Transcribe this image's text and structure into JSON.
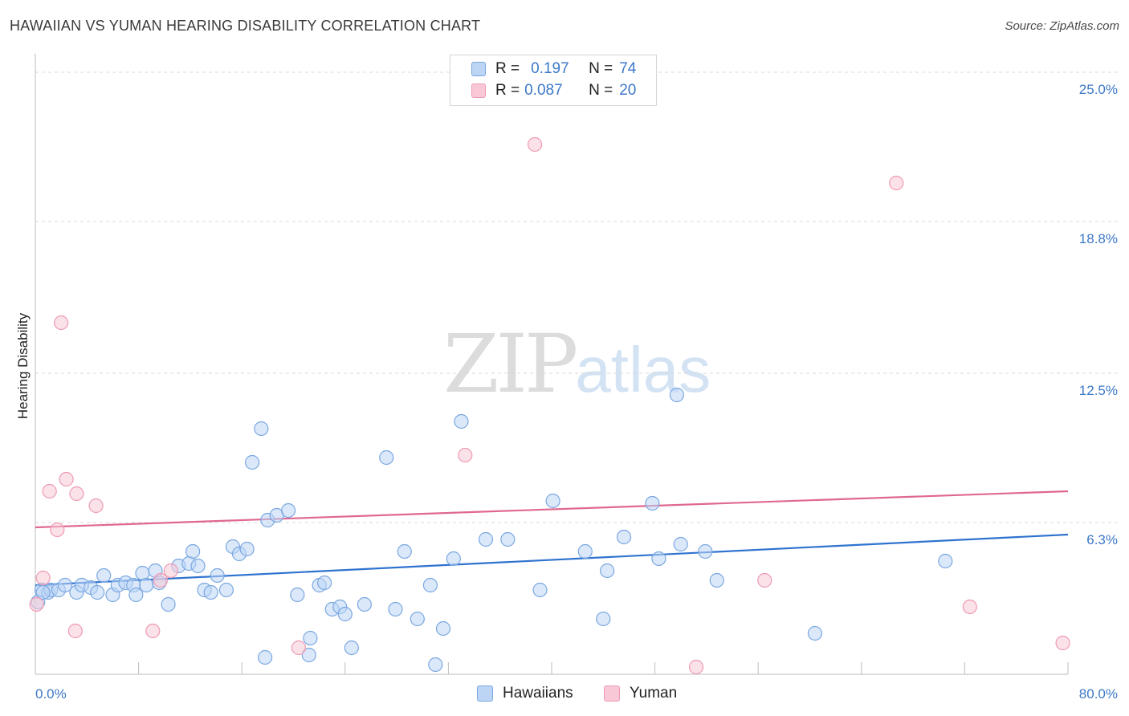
{
  "header": {
    "title": "HAWAIIAN VS YUMAN HEARING DISABILITY CORRELATION CHART",
    "source": "Source: ZipAtlas.com"
  },
  "watermark": {
    "zip": "ZIP",
    "atlas": "atlas"
  },
  "legend": {
    "rows": [
      {
        "r_label": "R =",
        "r_value": "0.197",
        "n_label": "N =",
        "n_value": "74"
      },
      {
        "r_label": "R =",
        "r_value": "0.087",
        "n_label": "N =",
        "n_value": "20"
      }
    ]
  },
  "bottom_legend": {
    "hawaiians": "Hawaiians",
    "yuman": "Yuman"
  },
  "colors": {
    "hawaiians_fill": "#bcd5f5",
    "hawaiians_stroke": "#7aa7e0",
    "hawaiians_line": "#2f73cf",
    "yuman_fill": "#f8c8d6",
    "yuman_stroke": "#ee9ab3",
    "yuman_line": "#e06890",
    "grid": "#d9d9d9",
    "tick_label": "#3d78c8"
  },
  "chart_data": {
    "type": "scatter",
    "title": "HAWAIIAN VS YUMAN HEARING DISABILITY CORRELATION CHART",
    "xlabel": "",
    "ylabel": "Hearing Disability",
    "xlim": [
      0,
      80
    ],
    "ylim": [
      0,
      25.6
    ],
    "x_tick_labels": [
      "0.0%",
      "80.0%"
    ],
    "y_ticks": [
      6.3,
      12.5,
      18.8,
      25.0
    ],
    "y_tick_labels": [
      "6.3%",
      "12.5%",
      "18.8%",
      "25.0%"
    ],
    "grid": true,
    "series": [
      {
        "name": "Hawaiians",
        "r": 0.197,
        "n": 74,
        "trend": {
          "x": [
            0,
            80
          ],
          "y": [
            3.7,
            5.8
          ]
        },
        "points": [
          [
            0.2,
            3.0
          ],
          [
            0.5,
            3.5
          ],
          [
            1.0,
            3.4
          ],
          [
            1.2,
            3.5
          ],
          [
            1.8,
            3.5
          ],
          [
            2.3,
            3.7
          ],
          [
            3.2,
            3.4
          ],
          [
            3.6,
            3.7
          ],
          [
            4.3,
            3.6
          ],
          [
            4.8,
            3.4
          ],
          [
            5.3,
            4.1
          ],
          [
            6.0,
            3.3
          ],
          [
            6.4,
            3.7
          ],
          [
            7.0,
            3.8
          ],
          [
            7.6,
            3.7
          ],
          [
            7.8,
            3.3
          ],
          [
            8.3,
            4.2
          ],
          [
            8.6,
            3.7
          ],
          [
            9.3,
            4.3
          ],
          [
            9.6,
            3.8
          ],
          [
            10.3,
            2.9
          ],
          [
            11.1,
            4.5
          ],
          [
            11.9,
            4.6
          ],
          [
            12.2,
            5.1
          ],
          [
            12.6,
            4.5
          ],
          [
            13.1,
            3.5
          ],
          [
            13.6,
            3.4
          ],
          [
            14.1,
            4.1
          ],
          [
            14.8,
            3.5
          ],
          [
            15.3,
            5.3
          ],
          [
            15.8,
            5.0
          ],
          [
            16.4,
            5.2
          ],
          [
            16.8,
            8.8
          ],
          [
            17.5,
            10.2
          ],
          [
            17.8,
            0.7
          ],
          [
            18.0,
            6.4
          ],
          [
            18.7,
            6.6
          ],
          [
            19.6,
            6.8
          ],
          [
            20.3,
            3.3
          ],
          [
            21.2,
            0.8
          ],
          [
            21.3,
            1.5
          ],
          [
            22.0,
            3.7
          ],
          [
            22.4,
            3.8
          ],
          [
            23.0,
            2.7
          ],
          [
            23.6,
            2.8
          ],
          [
            24.0,
            2.5
          ],
          [
            24.5,
            1.1
          ],
          [
            25.5,
            2.9
          ],
          [
            27.2,
            9.0
          ],
          [
            27.9,
            2.7
          ],
          [
            28.6,
            5.1
          ],
          [
            29.6,
            2.3
          ],
          [
            30.6,
            3.7
          ],
          [
            31.0,
            0.4
          ],
          [
            31.6,
            1.9
          ],
          [
            32.4,
            4.8
          ],
          [
            33.0,
            10.5
          ],
          [
            34.9,
            5.6
          ],
          [
            36.6,
            5.6
          ],
          [
            39.1,
            3.5
          ],
          [
            40.1,
            7.2
          ],
          [
            42.6,
            5.1
          ],
          [
            44.0,
            2.3
          ],
          [
            44.3,
            4.3
          ],
          [
            45.6,
            5.7
          ],
          [
            47.8,
            7.1
          ],
          [
            48.3,
            4.8
          ],
          [
            49.7,
            11.6
          ],
          [
            50.0,
            5.4
          ],
          [
            51.9,
            5.1
          ],
          [
            52.8,
            3.9
          ],
          [
            60.4,
            1.7
          ],
          [
            70.5,
            4.7
          ],
          [
            0.6,
            3.4
          ]
        ]
      },
      {
        "name": "Yuman",
        "r": 0.087,
        "n": 20,
        "trend": {
          "x": [
            0,
            80
          ],
          "y": [
            6.1,
            7.6
          ]
        },
        "points": [
          [
            0.1,
            2.9
          ],
          [
            0.6,
            4.0
          ],
          [
            1.1,
            7.6
          ],
          [
            1.7,
            6.0
          ],
          [
            2.0,
            14.6
          ],
          [
            2.4,
            8.1
          ],
          [
            3.1,
            1.8
          ],
          [
            3.2,
            7.5
          ],
          [
            4.7,
            7.0
          ],
          [
            9.1,
            1.8
          ],
          [
            9.7,
            3.9
          ],
          [
            10.5,
            4.3
          ],
          [
            20.4,
            1.1
          ],
          [
            33.3,
            9.1
          ],
          [
            38.7,
            22.0
          ],
          [
            51.2,
            0.3
          ],
          [
            56.5,
            3.9
          ],
          [
            66.7,
            20.4
          ],
          [
            72.4,
            2.8
          ],
          [
            79.6,
            1.3
          ]
        ]
      }
    ]
  }
}
